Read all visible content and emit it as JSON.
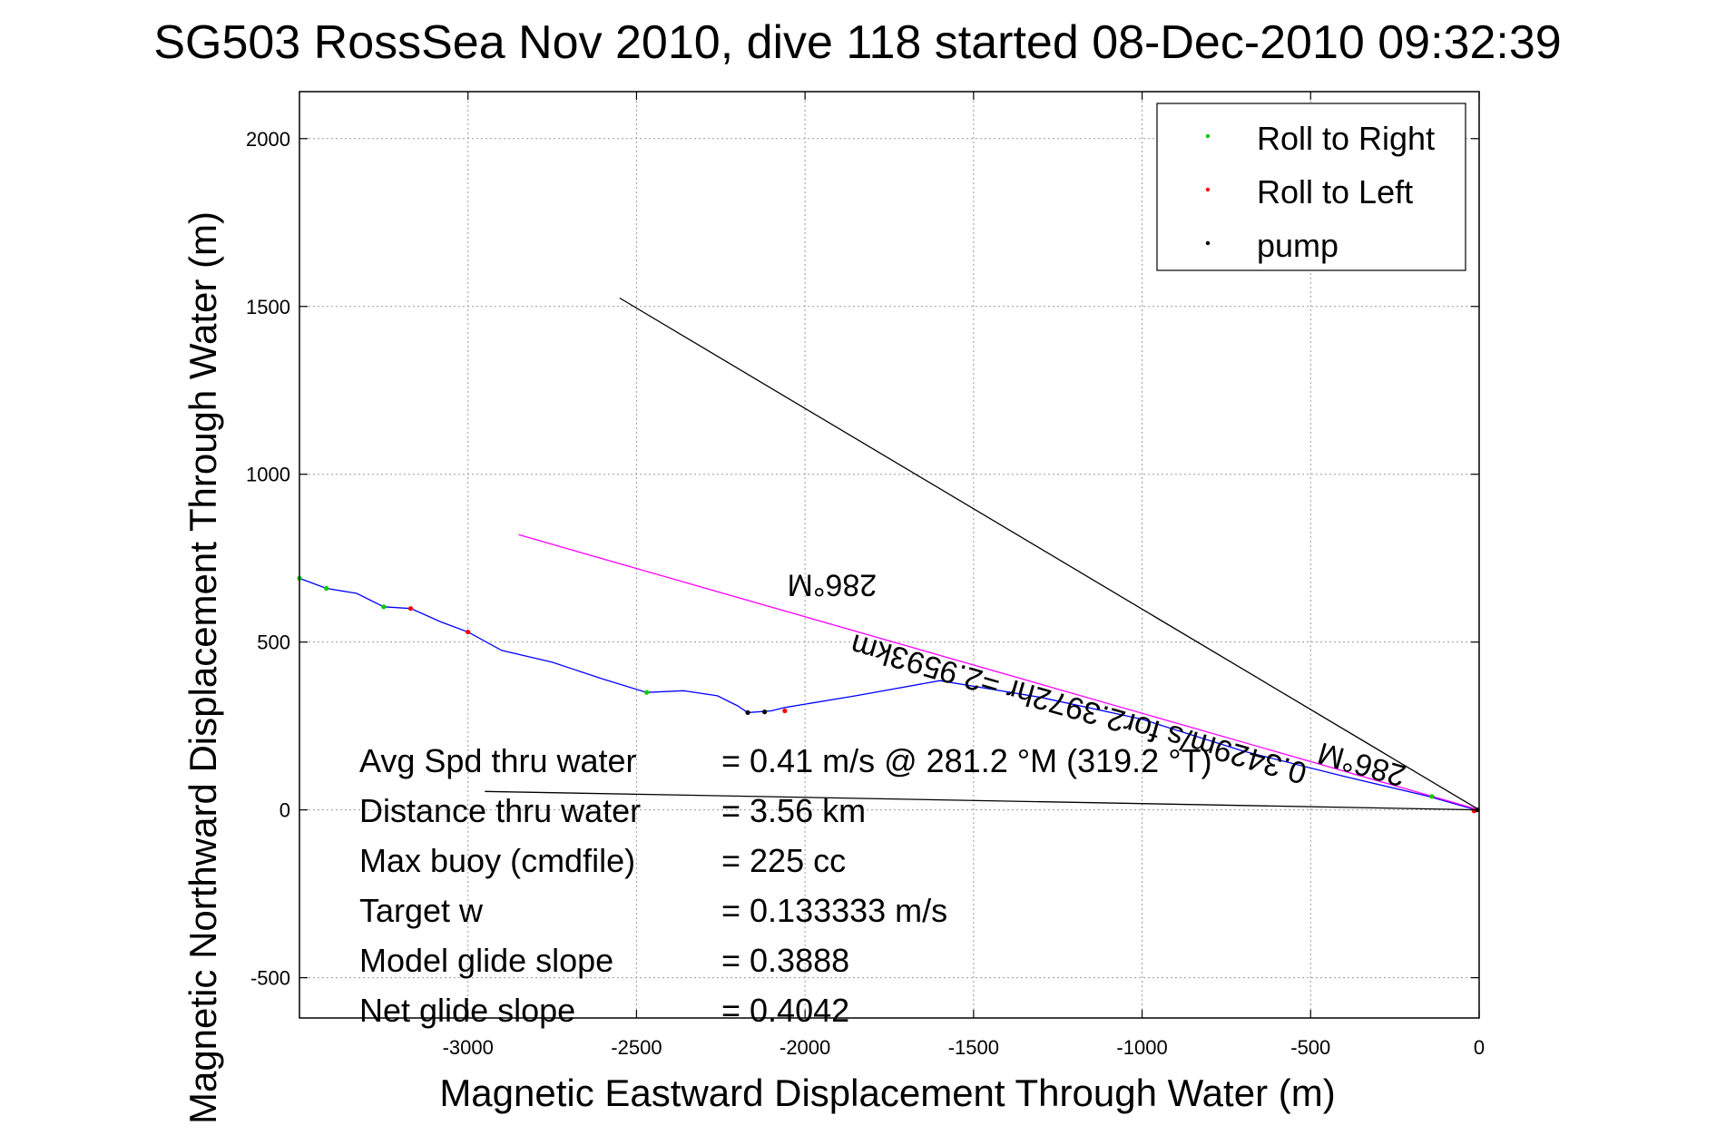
{
  "window": {
    "title": "SG503 RossSea Nov 2010, dive 118 started 08-Dec-2010 09:32:39"
  },
  "chart_data": {
    "type": "line",
    "title": "SG503 RossSea Nov 2010, dive 118 started 08-Dec-2010 09:32:39",
    "xlabel": "Magnetic Eastward Displacement Through Water (m)",
    "ylabel": "Magnetic Northward Displacement Through Water (m)",
    "xlim": [
      -3500,
      0
    ],
    "ylim": [
      -620,
      2140
    ],
    "xticks": [
      -3000,
      -2500,
      -2000,
      -1500,
      -1000,
      -500,
      0
    ],
    "yticks": [
      -500,
      0,
      500,
      1000,
      1500,
      2000
    ],
    "grid": true,
    "legend_position": "top-right",
    "legend": [
      {
        "label": "Roll to Right",
        "color": "#00cc00"
      },
      {
        "label": "Roll to Left",
        "color": "#ff0000"
      },
      {
        "label": "pump",
        "color": "#000000"
      }
    ],
    "series": [
      {
        "name": "track",
        "color": "#0000ff",
        "points": [
          [
            -3500,
            690
          ],
          [
            -3420,
            660
          ],
          [
            -3330,
            645
          ],
          [
            -3250,
            605
          ],
          [
            -3170,
            600
          ],
          [
            -3080,
            560
          ],
          [
            -3000,
            530
          ],
          [
            -2900,
            475
          ],
          [
            -2750,
            440
          ],
          [
            -2600,
            390
          ],
          [
            -2470,
            350
          ],
          [
            -2360,
            355
          ],
          [
            -2260,
            340
          ],
          [
            -2200,
            310
          ],
          [
            -2170,
            290
          ],
          [
            -2100,
            295
          ],
          [
            -2060,
            305
          ],
          [
            -1850,
            340
          ],
          [
            -1600,
            385
          ],
          [
            -1300,
            335
          ],
          [
            -1000,
            270
          ],
          [
            -700,
            175
          ],
          [
            -400,
            100
          ],
          [
            -150,
            40
          ],
          [
            -20,
            3
          ],
          [
            0,
            0
          ]
        ]
      },
      {
        "name": "heading line",
        "color": "#ff00ff",
        "points": [
          [
            -2850,
            820
          ],
          [
            0,
            0
          ]
        ]
      },
      {
        "name": "reference line 1",
        "color": "#000000",
        "points": [
          [
            -2550,
            1525
          ],
          [
            0,
            0
          ]
        ]
      },
      {
        "name": "reference line 2",
        "color": "#000000",
        "points": [
          [
            -2950,
            55
          ],
          [
            0,
            0
          ]
        ]
      }
    ],
    "markers": {
      "roll_right": [
        [
          -3500,
          690
        ],
        [
          -3420,
          660
        ],
        [
          -3250,
          605
        ],
        [
          -2470,
          350
        ],
        [
          -140,
          40
        ]
      ],
      "roll_left": [
        [
          -3170,
          600
        ],
        [
          -3000,
          530
        ],
        [
          -2060,
          295
        ],
        [
          -15,
          -3
        ]
      ],
      "pump": [
        [
          -2170,
          290
        ],
        [
          -2120,
          292
        ],
        [
          -5,
          0
        ]
      ]
    },
    "annotations": [
      {
        "text": "286°M",
        "x": -1920,
        "y": 700,
        "rotate": 180
      },
      {
        "text": "0.3429m/s for2.3972hr =2.9593km",
        "x": -1180,
        "y": 330,
        "rotate": 196
      },
      {
        "text": "286°M",
        "x": -340,
        "y": 165,
        "rotate": 196
      }
    ]
  },
  "stats": {
    "rows": [
      {
        "label": "Avg Spd thru water",
        "value": "=  0.41 m/s @ 281.2 °M (319.2 °T)"
      },
      {
        "label": "Distance thru water",
        "value": "=  3.56 km"
      },
      {
        "label": "Max buoy (cmdfile)",
        "value": "= 225 cc"
      },
      {
        "label": "Target w",
        "value": "= 0.133333 m/s"
      },
      {
        "label": "Model glide slope",
        "value": "= 0.3888"
      },
      {
        "label": "Net glide slope",
        "value": "= 0.4042"
      }
    ]
  }
}
